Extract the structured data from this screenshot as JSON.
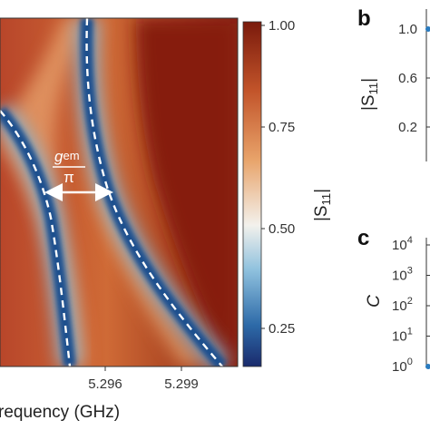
{
  "chart_data": [
    {
      "type": "heatmap",
      "xlabel": "requency (GHz)",
      "xticks": [
        "5.296",
        "5.299"
      ],
      "colorbar": {
        "label": "|S",
        "label_sub": "11",
        "label_end": "|",
        "ticks": [
          "1.00",
          "0.75",
          "0.50",
          "0.25"
        ],
        "tick_values": [
          1.0,
          0.75,
          0.5,
          0.25
        ],
        "range": [
          0.16,
          1.0
        ],
        "colors": [
          "#1a2a6c",
          "#2d6aa8",
          "#8fc1de",
          "#f3f1ec",
          "#e8a36a",
          "#c2542a",
          "#7a1a0c"
        ]
      },
      "annotation": {
        "label_main": "g",
        "label_sub": "em",
        "label_den": "π",
        "meaning": "double-headed arrow between the two resonance branches"
      }
    },
    {
      "type": "line",
      "panel": "b",
      "ylabel": "|S",
      "ylabel_sub": "11",
      "ylabel_end": "|",
      "yticks": [
        "1.0",
        "0.6",
        "0.2"
      ],
      "tick_values": [
        1.0,
        0.6,
        0.2
      ]
    },
    {
      "type": "line",
      "panel": "c",
      "ylabel": "C",
      "yscale": "log",
      "yticks": [
        {
          "base": "10",
          "exp": "4"
        },
        {
          "base": "10",
          "exp": "3"
        },
        {
          "base": "10",
          "exp": "2"
        },
        {
          "base": "10",
          "exp": "1"
        },
        {
          "base": "10",
          "exp": "0"
        }
      ],
      "tick_values": [
        10000,
        1000,
        100,
        10,
        1
      ]
    }
  ]
}
